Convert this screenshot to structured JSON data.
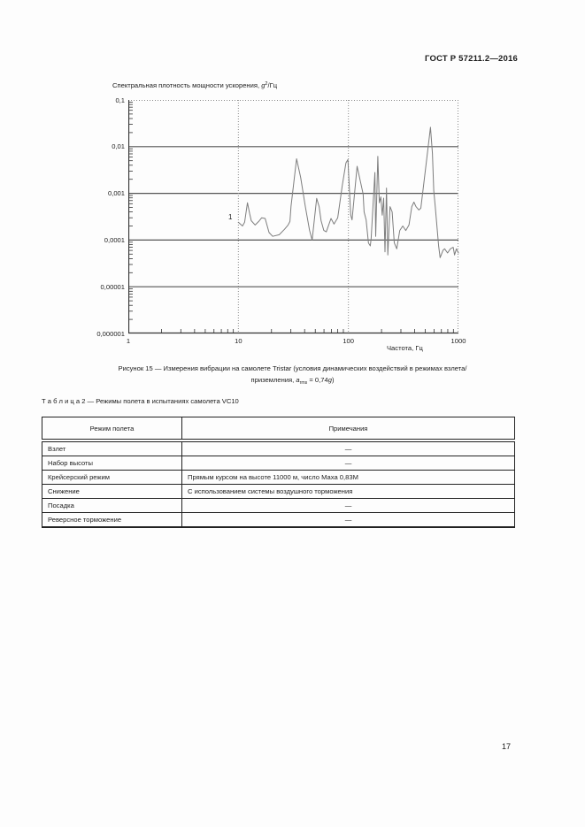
{
  "page": {
    "header": "ГОСТ Р 57211.2—2016",
    "page_number": "17"
  },
  "chart_data": {
    "type": "line",
    "title": {
      "prefix": "Спектральная плотность мощности ускорения, ",
      "var": "g",
      "sup": "2",
      "suffix": "/Гц"
    },
    "xlabel": "Частота, Гц",
    "x_scale": "log",
    "y_scale": "log",
    "xlim": [
      1,
      1000
    ],
    "ylim": [
      1e-06,
      0.1
    ],
    "grid": "decade lines solid horizontal, dotted vertical at 10/100/1000, log minor ticks on axes",
    "legend": "none",
    "curve_label": "1",
    "x_ticks": [
      {
        "v": 1,
        "label": "1"
      },
      {
        "v": 10,
        "label": "10"
      },
      {
        "v": 100,
        "label": "100"
      },
      {
        "v": 1000,
        "label": "1000"
      }
    ],
    "y_ticks": [
      {
        "v": 0.1,
        "label": "0,1"
      },
      {
        "v": 0.01,
        "label": "0,01"
      },
      {
        "v": 0.001,
        "label": "0,001"
      },
      {
        "v": 0.0001,
        "label": "0,0001"
      },
      {
        "v": 1e-05,
        "label": "0,00001"
      },
      {
        "v": 1e-06,
        "label": "0,000001"
      }
    ],
    "line_color": "#7d7d7d",
    "grid_color": "#555555",
    "dotted_color": "#8a8a8a",
    "axis_color": "#333333",
    "series": [
      {
        "name": "1",
        "x": [
          10,
          10.9,
          11.4,
          12.1,
          12.7,
          13.1,
          14.2,
          15.3,
          16.3,
          17.5,
          19,
          20.5,
          23.5,
          26.3,
          28.3,
          29.4,
          30.1,
          33.8,
          36.8,
          40.6,
          44.4,
          46.8,
          51.5,
          54.2,
          56.5,
          59.8,
          63,
          69.5,
          74,
          80,
          88,
          95,
          99,
          105,
          108,
          120,
          136,
          139,
          145,
          152,
          158,
          161,
          174,
          177,
          185,
          191,
          197,
          203,
          209,
          215,
          222,
          228,
          239,
          250,
          261,
          275,
          293,
          312,
          332,
          355,
          377,
          394,
          411,
          437,
          455,
          511,
          557,
          580,
          597,
          616,
          660,
          681,
          726,
          749,
          796,
          845,
          897,
          922,
          958,
          1000
        ],
        "y": [
          0.00024,
          0.0002,
          0.00024,
          0.00063,
          0.00036,
          0.00026,
          0.00021,
          0.00025,
          0.0003,
          0.00029,
          0.000145,
          0.00012,
          0.00013,
          0.00017,
          0.00021,
          0.00025,
          0.00052,
          0.0055,
          0.0022,
          0.00052,
          0.00016,
          0.0001,
          0.00078,
          0.00052,
          0.00026,
          0.00016,
          0.00015,
          0.00029,
          0.00022,
          0.0003,
          0.0015,
          0.0045,
          0.0053,
          0.00034,
          0.00027,
          0.0038,
          0.00097,
          0.0004,
          0.00027,
          8.7e-05,
          7.5e-05,
          0.00011,
          0.0028,
          0.00012,
          0.0062,
          0.00063,
          0.00084,
          0.00034,
          0.00079,
          5.6e-05,
          0.0013,
          4.8e-05,
          0.00052,
          0.0004,
          8.7e-05,
          6.5e-05,
          0.00016,
          0.0002,
          0.00016,
          0.00021,
          0.00052,
          0.00065,
          0.00052,
          0.00044,
          0.00048,
          0.0046,
          0.026,
          0.0072,
          0.00115,
          0.00052,
          7.5e-05,
          4.2e-05,
          6.1e-05,
          6.5e-05,
          5.3e-05,
          6.5e-05,
          7e-05,
          4.8e-05,
          6.5e-05,
          5.3e-05
        ]
      }
    ]
  },
  "figure": {
    "caption_line1": "Рисунок 15 — Измерения вибрации на самолете Tristar (условия динамических воздействий в режимах взлета/",
    "caption_line2": {
      "prefix": "приземления, ",
      "var": "a",
      "sub": "rms",
      "mid": " = 0,74",
      "gvar": "g",
      "suffix": ")"
    }
  },
  "table": {
    "title": "Т а б л и ц а  2 — Режимы полета в испытаниях самолета VC10",
    "columns": [
      "Режим полета",
      "Примечания"
    ],
    "rows": [
      {
        "mode": "Взлет",
        "note": "—"
      },
      {
        "mode": "Набор высоты",
        "note": "—"
      },
      {
        "mode": "Крейсерский режим",
        "note": "Прямым курсом на высоте 11000 м, число Маха 0,83М"
      },
      {
        "mode": "Снижение",
        "note": "С использованием системы воздушного торможения"
      },
      {
        "mode": "Посадка",
        "note": "—"
      },
      {
        "mode": "Реверсное торможение",
        "note": "—"
      }
    ]
  }
}
